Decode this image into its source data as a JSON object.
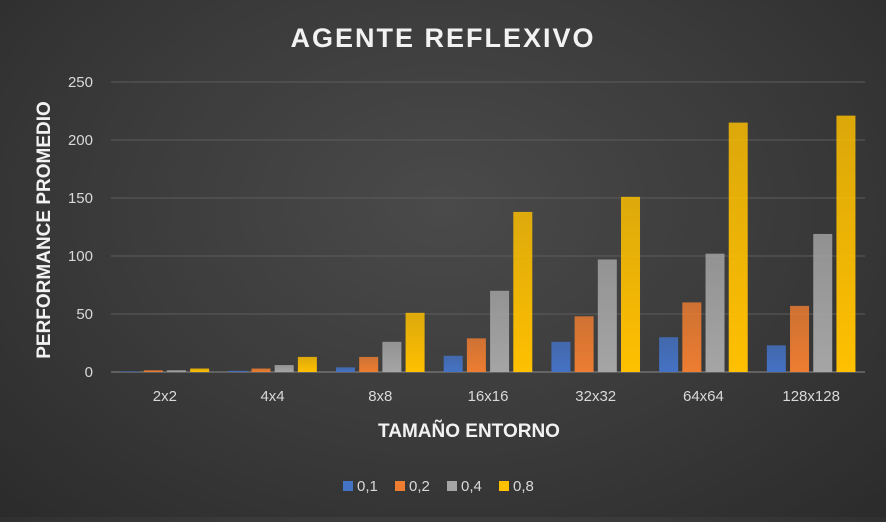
{
  "chart_data": {
    "type": "bar",
    "title": "AGENTE REFLEXIVO",
    "xlabel": "TAMAÑO ENTORNO",
    "ylabel": "PERFORMANCE PROMEDIO",
    "categories": [
      "2x2",
      "4x4",
      "8x8",
      "16x16",
      "32x32",
      "64x64",
      "128x128"
    ],
    "ylim": [
      0,
      250
    ],
    "yticks": [
      0,
      50,
      100,
      150,
      200,
      250
    ],
    "grid": true,
    "legend_position": "bottom",
    "series": [
      {
        "name": "0,1",
        "color": "#4472c4",
        "values": [
          0.5,
          1,
          4,
          14,
          26,
          30,
          23
        ]
      },
      {
        "name": "0,2",
        "color": "#ed7d31",
        "values": [
          1.5,
          3,
          13,
          29,
          48,
          60,
          57
        ]
      },
      {
        "name": "0,4",
        "color": "#a5a5a5",
        "values": [
          1.5,
          6,
          26,
          70,
          97,
          102,
          119
        ]
      },
      {
        "name": "0,8",
        "color": "#ffc000",
        "values": [
          3,
          13,
          51,
          138,
          151,
          215,
          221
        ]
      }
    ]
  }
}
